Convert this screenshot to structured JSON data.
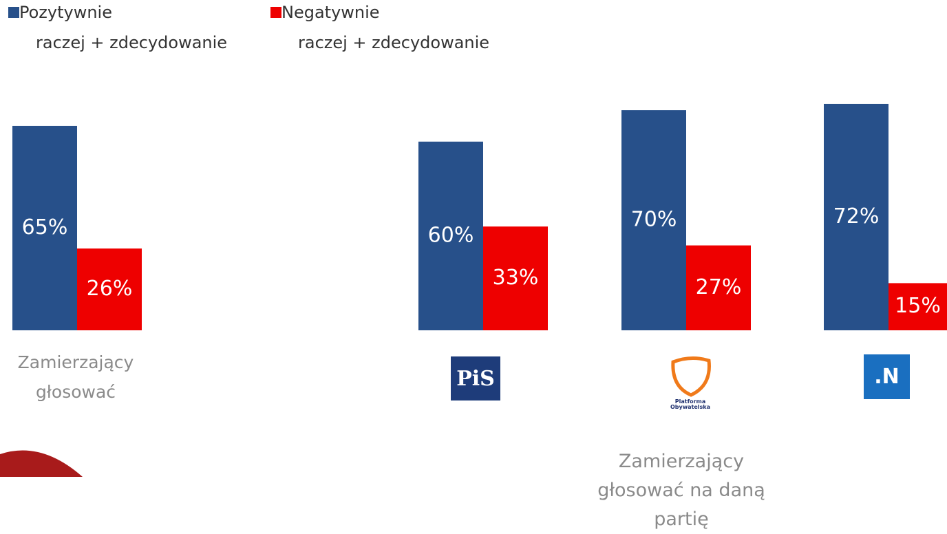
{
  "chart_data": {
    "type": "bar",
    "categories": [
      "Zamierzający głosować",
      "PiS",
      "Platforma Obywatelska",
      ".N"
    ],
    "annotation": "Zamierzający głosować na daną partię",
    "series": [
      {
        "name": "Pozytywnie",
        "note": "raczej + zdecydowanie",
        "color": "#27508a",
        "values": [
          65,
          60,
          70,
          72
        ],
        "value_labels": [
          "65%",
          "60%",
          "70%",
          "72%"
        ]
      },
      {
        "name": "Negatywnie",
        "note": "raczej + zdecydowanie",
        "color": "#ee0000",
        "values": [
          26,
          33,
          27,
          15
        ],
        "value_labels": [
          "26%",
          "33%",
          "27%",
          "15%"
        ]
      }
    ],
    "ylim": [
      0,
      100
    ],
    "grid": false
  }
}
